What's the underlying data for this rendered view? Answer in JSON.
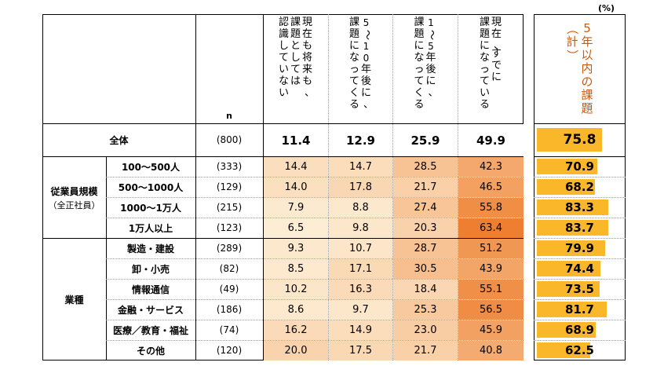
{
  "unit_label": "(%)",
  "header": {
    "n_label": "n",
    "columns": [
      [
        "現在も将来も、",
        "課題としては",
        "認識していない"
      ],
      [
        "5～10年後に、",
        "課題になってくる"
      ],
      [
        "1～5年後に、",
        "課題になってくる"
      ],
      [
        "現在、すでに",
        "課題になっている"
      ]
    ],
    "total_column": [
      "5年以内の課題",
      "（計）"
    ]
  },
  "groups": [
    {
      "label": "",
      "sublabel": ""
    },
    {
      "label": "従業員規模",
      "sublabel": "（全正社員）"
    },
    {
      "label": "業種",
      "sublabel": ""
    }
  ],
  "colors": {
    "accent_text": "#c85a10",
    "bar": "#fbb72a",
    "heat_low": "#fdf0d8",
    "heat_high": "#ee7c2c"
  },
  "chart_data": {
    "type": "table",
    "columns": [
      "現在も将来も、課題としては認識していない",
      "5～10年後に、課題になってくる",
      "1～5年後に、課題になってくる",
      "現在、すでに課題になっている",
      "5年以内の課題（計）"
    ],
    "rows": [
      {
        "label": "全体",
        "n": "(800)",
        "values": [
          "11.4",
          "12.9",
          "25.9",
          "49.9"
        ],
        "total": "75.8",
        "group": 0
      },
      {
        "label": "100～500人",
        "n": "(333)",
        "values": [
          "14.4",
          "14.7",
          "28.5",
          "42.3"
        ],
        "total": "70.9",
        "group": 1
      },
      {
        "label": "500～1000人",
        "n": "(129)",
        "values": [
          "14.0",
          "17.8",
          "21.7",
          "46.5"
        ],
        "total": "68.2",
        "group": 1
      },
      {
        "label": "1000～1万人",
        "n": "(215)",
        "values": [
          "7.9",
          "8.8",
          "27.4",
          "55.8"
        ],
        "total": "83.3",
        "group": 1
      },
      {
        "label": "1万人以上",
        "n": "(123)",
        "values": [
          "6.5",
          "9.8",
          "20.3",
          "63.4"
        ],
        "total": "83.7",
        "group": 1
      },
      {
        "label": "製造・建設",
        "n": "(289)",
        "values": [
          "9.3",
          "10.7",
          "28.7",
          "51.2"
        ],
        "total": "79.9",
        "group": 2
      },
      {
        "label": "卸・小売",
        "n": "(82)",
        "values": [
          "8.5",
          "17.1",
          "30.5",
          "43.9"
        ],
        "total": "74.4",
        "group": 2
      },
      {
        "label": "情報通信",
        "n": "(49)",
        "values": [
          "10.2",
          "16.3",
          "18.4",
          "55.1"
        ],
        "total": "73.5",
        "group": 2
      },
      {
        "label": "金融・サービス",
        "n": "(186)",
        "values": [
          "8.6",
          "9.7",
          "25.3",
          "56.5"
        ],
        "total": "81.7",
        "group": 2
      },
      {
        "label": "医療／教育・福祉",
        "n": "(74)",
        "values": [
          "16.2",
          "14.9",
          "23.0",
          "45.9"
        ],
        "total": "68.9",
        "group": 2
      },
      {
        "label": "その他",
        "n": "(120)",
        "values": [
          "20.0",
          "17.5",
          "21.7",
          "40.8"
        ],
        "total": "62.5",
        "group": 2
      }
    ],
    "total_range": [
      0,
      100
    ]
  }
}
